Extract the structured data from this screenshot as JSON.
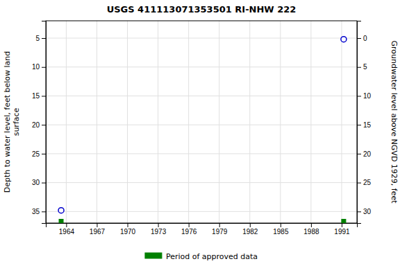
{
  "chart_data": {
    "type": "scatter",
    "title": "USGS 411113071353501 RI-NHW  222",
    "ylabel": "Depth to water level, feet below land\n surface",
    "y2label": "Groundwater level above NGVD 1929, feet",
    "xlim": [
      1962.0,
      1992.5
    ],
    "xticks": [
      1964,
      1967,
      1970,
      1973,
      1976,
      1979,
      1982,
      1985,
      1988,
      1991
    ],
    "ylim": [
      37,
      2
    ],
    "yticks": [
      5,
      10,
      15,
      20,
      25,
      30,
      35
    ],
    "y2lim": [
      32,
      -3
    ],
    "y2ticks": [
      0,
      5,
      10,
      15,
      20,
      25,
      30
    ],
    "grid": true,
    "legend": "bottom",
    "series": [
      {
        "color": "#0000cc",
        "marker": "circle",
        "x": [
          1963.5,
          1991.2
        ],
        "values": [
          34.8,
          5.2
        ]
      },
      {
        "name": "Period of approved data",
        "color": "#008000",
        "marker": "square",
        "x": [
          1963.5,
          1991.2
        ],
        "values": [
          36.7,
          36.7
        ]
      }
    ]
  }
}
